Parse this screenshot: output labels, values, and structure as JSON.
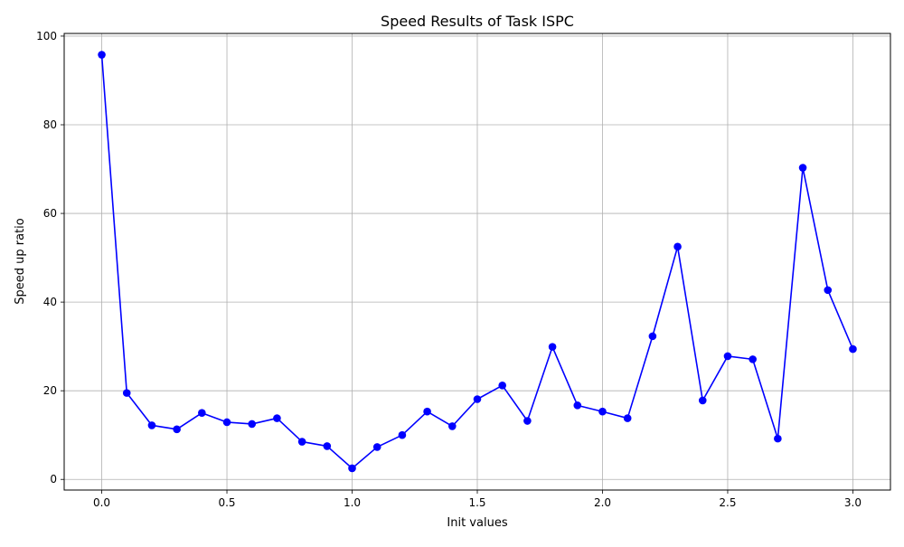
{
  "chart_data": {
    "type": "line",
    "title": "Speed Results of Task ISPC",
    "xlabel": "Init values",
    "ylabel": "Speed up ratio",
    "xlim": [
      -0.15,
      3.15
    ],
    "ylim": [
      -2.4,
      100.6
    ],
    "xticks": [
      0.0,
      0.5,
      1.0,
      1.5,
      2.0,
      2.5,
      3.0
    ],
    "xtick_labels": [
      "0.0",
      "0.5",
      "1.0",
      "1.5",
      "2.0",
      "2.5",
      "3.0"
    ],
    "yticks": [
      0,
      20,
      40,
      60,
      80,
      100
    ],
    "ytick_labels": [
      "0",
      "20",
      "40",
      "60",
      "80",
      "100"
    ],
    "grid": true,
    "series": [
      {
        "color": "#0000ff",
        "marker": "circle",
        "x": [
          0.0,
          0.1,
          0.2,
          0.3,
          0.4,
          0.5,
          0.6,
          0.7,
          0.8,
          0.9,
          1.0,
          1.1,
          1.2,
          1.3,
          1.4,
          1.5,
          1.6,
          1.7,
          1.8,
          1.9,
          2.0,
          2.1,
          2.2,
          2.3,
          2.4,
          2.5,
          2.6,
          2.7,
          2.8,
          2.9,
          3.0
        ],
        "y": [
          95.8,
          19.5,
          12.2,
          11.3,
          15.0,
          12.9,
          12.5,
          13.8,
          8.5,
          7.5,
          2.5,
          7.3,
          10.0,
          15.3,
          12.0,
          18.1,
          21.2,
          13.2,
          29.9,
          16.7,
          15.3,
          13.8,
          32.3,
          52.5,
          17.8,
          27.8,
          27.1,
          9.2,
          70.3,
          42.7,
          29.4
        ]
      }
    ]
  }
}
